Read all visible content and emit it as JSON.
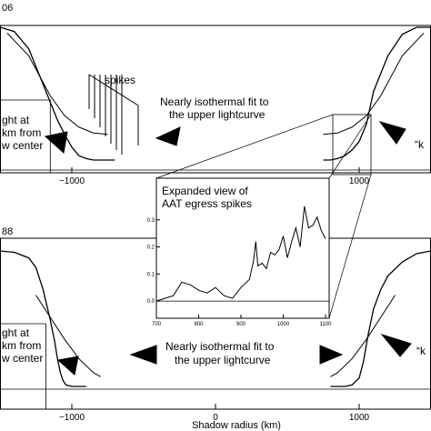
{
  "figure": {
    "top_panel_label": "06",
    "bottom_panel_label": "88",
    "xlabel": "Shadow radius (km)",
    "annotations": {
      "spikes": "spikes",
      "fit_top": [
        "Nearly isothermal fit to",
        "the upper lightcurve"
      ],
      "fit_bottom": [
        "Nearly isothermal fit to",
        "the upper lightcurve"
      ],
      "left_top": [
        "ght at",
        "km from",
        "w center"
      ],
      "left_bottom": [
        "ght at",
        "km from",
        "w center"
      ],
      "right_top": "“k",
      "right_bottom": "“k",
      "inset_title": [
        "Expanded view of",
        "AAT egress spikes"
      ]
    }
  },
  "chart_data": [
    {
      "type": "line",
      "panel": "top",
      "label": "06",
      "xlabel": "",
      "xlim": [
        -1500,
        1500
      ],
      "xticks": [
        -1000,
        1000
      ],
      "series": [
        {
          "x": [
            -1500,
            -1400,
            -1300,
            -1200,
            -1100,
            -1050,
            -1000,
            -950,
            -900,
            -850,
            -800,
            -750,
            -700
          ],
          "y": [
            1.0,
            0.97,
            0.85,
            0.6,
            0.35,
            0.25,
            0.16,
            0.1,
            0.08,
            0.07,
            0.07,
            0.07,
            0.07
          ]
        },
        {
          "x": [
            750,
            800,
            850,
            900,
            950,
            1000,
            1050,
            1100,
            1200,
            1300,
            1400,
            1500
          ],
          "y": [
            0.07,
            0.07,
            0.08,
            0.1,
            0.14,
            0.2,
            0.32,
            0.55,
            0.8,
            0.95,
            1.0,
            1.0
          ]
        }
      ],
      "fit": [
        {
          "x": [
            -1450,
            -1300,
            -1150,
            -1050,
            -950,
            -850,
            -750
          ],
          "y": [
            0.96,
            0.8,
            0.52,
            0.38,
            0.3,
            0.26,
            0.25
          ]
        },
        {
          "x": [
            750,
            850,
            950,
            1050,
            1150,
            1300,
            1450
          ],
          "y": [
            0.25,
            0.26,
            0.3,
            0.38,
            0.52,
            0.8,
            0.96
          ]
        }
      ]
    },
    {
      "type": "line",
      "panel": "bottom",
      "label": "88",
      "xlabel": "Shadow radius (km)",
      "xlim": [
        -1500,
        1500
      ],
      "xticks": [
        -1000,
        0,
        1000
      ],
      "series": [
        {
          "x": [
            -1500,
            -1400,
            -1300,
            -1250,
            -1200,
            -1150,
            -1120,
            -1100,
            -1080,
            -1060,
            -1040,
            -1000,
            -950,
            -900
          ],
          "y": [
            1.0,
            0.99,
            0.95,
            0.88,
            0.72,
            0.5,
            0.35,
            0.22,
            0.12,
            0.06,
            0.03,
            0.02,
            0.02,
            0.02
          ]
        },
        {
          "x": [
            800,
            850,
            900,
            950,
            1000,
            1030,
            1060,
            1100,
            1150,
            1200,
            1300,
            1400,
            1500
          ],
          "y": [
            0.02,
            0.02,
            0.02,
            0.03,
            0.08,
            0.2,
            0.38,
            0.58,
            0.72,
            0.82,
            0.92,
            0.98,
            1.0
          ]
        }
      ],
      "fit": [
        {
          "x": [
            -1250,
            -1150,
            -1050,
            -950,
            -850,
            -800
          ],
          "y": [
            0.68,
            0.52,
            0.36,
            0.22,
            0.12,
            0.09
          ]
        },
        {
          "x": [
            800,
            850,
            950,
            1050,
            1150,
            1250
          ],
          "y": [
            0.09,
            0.12,
            0.22,
            0.36,
            0.52,
            0.68
          ]
        }
      ]
    },
    {
      "type": "line",
      "panel": "inset",
      "title": "Expanded view of AAT egress spikes",
      "xlim": [
        700,
        1100
      ],
      "ylim": [
        -0.05,
        0.4
      ],
      "xticks": [
        700,
        800,
        900,
        1000,
        1100
      ],
      "yticks": [
        0.0,
        0.1,
        0.2,
        0.3
      ],
      "series": [
        {
          "x": [
            700,
            720,
            740,
            760,
            780,
            800,
            820,
            840,
            860,
            880,
            900,
            920,
            930,
            935,
            940,
            950,
            960,
            970,
            980,
            990,
            1000,
            1010,
            1020,
            1030,
            1040,
            1050,
            1060,
            1070,
            1080,
            1090,
            1100
          ],
          "y": [
            0.0,
            0.01,
            0.02,
            0.07,
            0.06,
            0.04,
            0.03,
            0.05,
            0.02,
            0.01,
            0.05,
            0.08,
            0.15,
            0.22,
            0.13,
            0.14,
            0.12,
            0.18,
            0.17,
            0.19,
            0.24,
            0.16,
            0.22,
            0.27,
            0.2,
            0.35,
            0.27,
            0.28,
            0.31,
            0.26,
            0.23
          ]
        }
      ],
      "baseline": 0.0
    }
  ]
}
